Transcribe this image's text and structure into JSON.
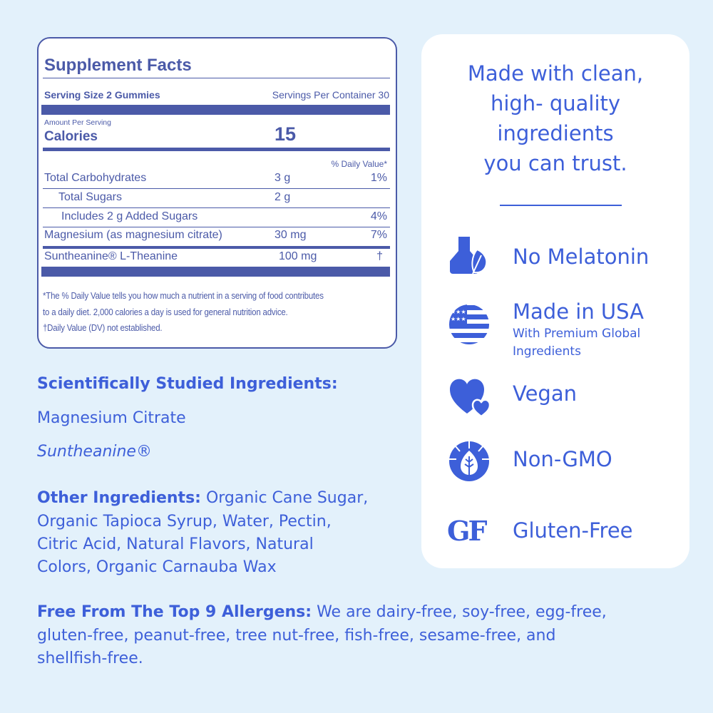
{
  "facts": {
    "title": "Supplement Facts",
    "serving_size": "Serving Size 2 Gummies",
    "servings_per_container": "Servings Per Container 30",
    "amount_per_serving": "Amount Per Serving",
    "calories_label": "Calories",
    "calories_value": "15",
    "dv_header": "% Daily Value*",
    "rows": [
      {
        "name": "Total Carbohydrates",
        "amount": "3 g",
        "dv": "1%"
      },
      {
        "name": "Total Sugars",
        "amount": "2 g",
        "dv": ""
      },
      {
        "name": "Includes 2 g Added Sugars",
        "amount": "",
        "dv": "4%"
      },
      {
        "name": "Magnesium (as magnesium citrate)",
        "amount": "30 mg",
        "dv": "7%"
      },
      {
        "name": "Suntheanine® L-Theanine",
        "amount": "100 mg",
        "dv": "†"
      }
    ],
    "footnotes": [
      "*The % Daily Value tells you how much a nutrient in a serving of food contributes",
      "to a daily diet. 2,000 calories a day is used for general nutrition advice.",
      "†Daily Value (DV) not established."
    ]
  },
  "ingredients": {
    "studied_heading": "Scientifically Studied Ingredients:",
    "studied": [
      "Magnesium Citrate",
      "Suntheanine®"
    ],
    "other_label": "Other Ingredients:",
    "other_lines": [
      " Organic Cane Sugar,",
      "Organic Tapioca Syrup, Water, Pectin,",
      "Citric Acid, Natural Flavors, Natural",
      "Colors, Organic Carnauba Wax"
    ],
    "allergen_label": "Free From The Top 9 Allergens:",
    "allergen_lines": [
      " We are dairy-free, soy-free, egg-free,",
      "gluten-free, peanut-free, tree nut-free, fish-free, sesame-free, and",
      "shellfish-free."
    ]
  },
  "card": {
    "headline": [
      "Made with clean,",
      "high- quality",
      "ingredients",
      "you can trust."
    ],
    "features": [
      {
        "icon": "flask-leaf-icon",
        "label": "No Melatonin"
      },
      {
        "icon": "us-flag-icon",
        "label": "Made in USA",
        "sub": [
          "With Premium Global",
          "Ingredients"
        ]
      },
      {
        "icon": "hearts-icon",
        "label": "Vegan"
      },
      {
        "icon": "non-gmo-leaf-icon",
        "label": "Non-GMO"
      },
      {
        "icon": "gf-icon",
        "label": "Gluten-Free",
        "icon_text": "GF"
      }
    ]
  },
  "colors": {
    "background": "#e3f1fb",
    "facts_navy": "#4b5aa8",
    "accent_blue": "#3d5fd9"
  }
}
